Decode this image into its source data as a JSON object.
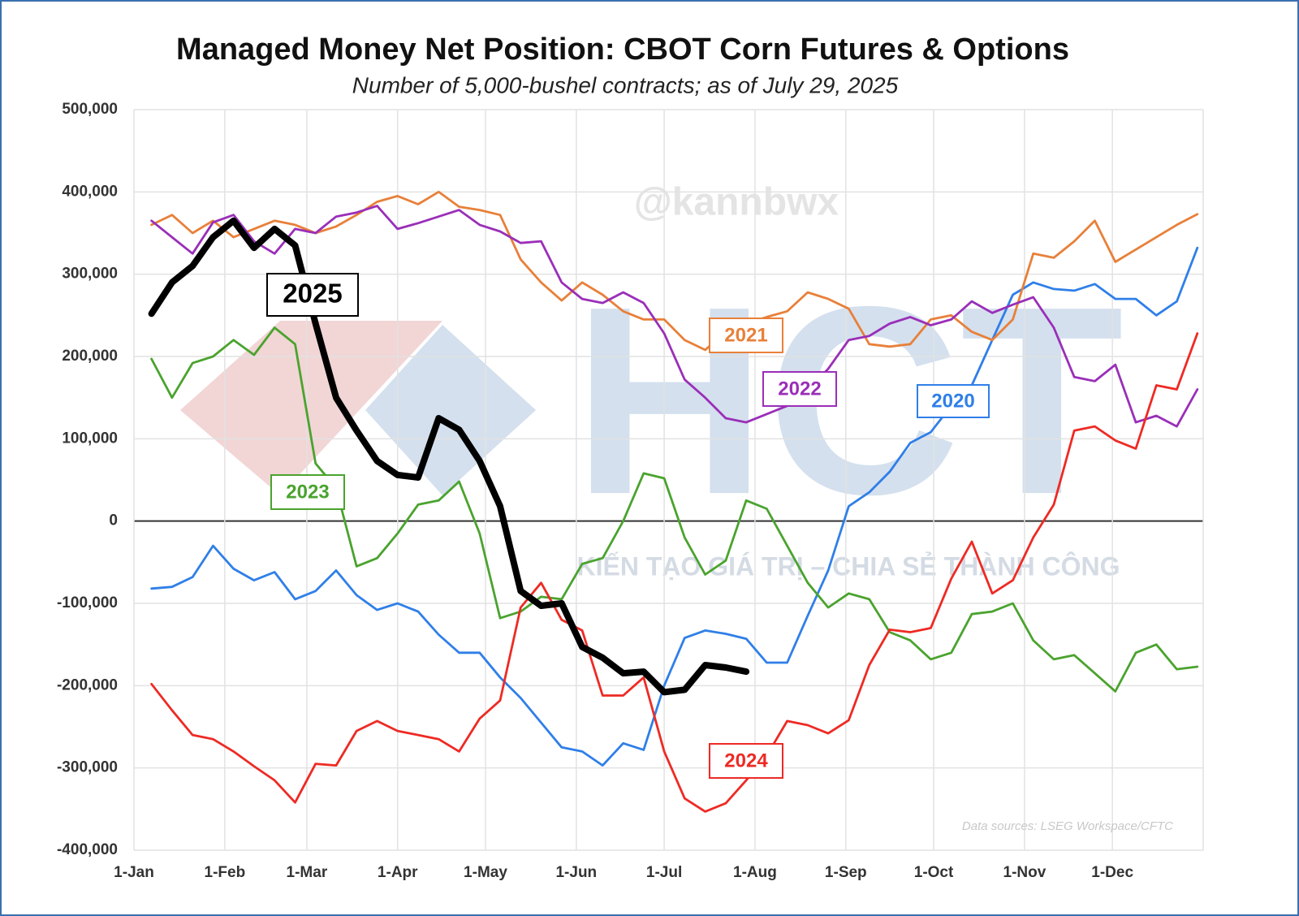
{
  "chart_data": {
    "type": "line",
    "title": "Managed Money Net Position: CBOT Corn Futures & Options",
    "subtitle": "Number of 5,000-bushel contracts; as of July 29, 2025",
    "source": "Data sources: LSEG Workspace/CFTC",
    "watermarks": [
      "@kannbwx",
      "HCT",
      "KIẾN TẠO GIÁ TRỊ – CHIA SẺ THÀNH CÔNG"
    ],
    "x": [
      6,
      13,
      20,
      27,
      34,
      41,
      48,
      55,
      62,
      69,
      76,
      83,
      90,
      97,
      104,
      111,
      118,
      125,
      132,
      139,
      146,
      153,
      160,
      167,
      174,
      181,
      188,
      195,
      202,
      209,
      216,
      223,
      230,
      237,
      244,
      251,
      258,
      265,
      272,
      279,
      286,
      293,
      300,
      307,
      314,
      321,
      328,
      335,
      342,
      349,
      356,
      363
    ],
    "xlim": [
      0,
      365
    ],
    "xticks": [
      {
        "value": 0,
        "label": "1-Jan"
      },
      {
        "value": 31,
        "label": "1-Feb"
      },
      {
        "value": 59,
        "label": "1-Mar"
      },
      {
        "value": 90,
        "label": "1-Apr"
      },
      {
        "value": 120,
        "label": "1-May"
      },
      {
        "value": 151,
        "label": "1-Jun"
      },
      {
        "value": 181,
        "label": "1-Jul"
      },
      {
        "value": 212,
        "label": "1-Aug"
      },
      {
        "value": 243,
        "label": "1-Sep"
      },
      {
        "value": 273,
        "label": "1-Oct"
      },
      {
        "value": 304,
        "label": "1-Nov"
      },
      {
        "value": 334,
        "label": "1-Dec"
      }
    ],
    "ylim": [
      -400000,
      500000
    ],
    "yticks": [
      {
        "value": -400000,
        "label": "-400,000"
      },
      {
        "value": -300000,
        "label": "-300,000"
      },
      {
        "value": -200000,
        "label": "-200,000"
      },
      {
        "value": -100000,
        "label": "-100,000"
      },
      0,
      {
        "value": 100000,
        "label": "100,000"
      },
      {
        "value": 200000,
        "label": "200,000"
      },
      {
        "value": 300000,
        "label": "300,000"
      },
      {
        "value": 400000,
        "label": "400,000"
      },
      {
        "value": 500000,
        "label": "500,000"
      }
    ],
    "grid": true,
    "series": [
      {
        "name": "2020",
        "color": "#2f7fe8",
        "values": [
          -82000,
          -80000,
          -68000,
          -30000,
          -58000,
          -72000,
          -62000,
          -95000,
          -85000,
          -60000,
          -90000,
          -108000,
          -100000,
          -110000,
          -138000,
          -160000,
          -160000,
          -190000,
          -215000,
          -245000,
          -275000,
          -280000,
          -297000,
          -270000,
          -278000,
          -200000,
          -142000,
          -133000,
          -137000,
          -143000,
          -172000,
          -172000,
          -115000,
          -60000,
          18000,
          35000,
          60000,
          95000,
          108000,
          140000,
          165000,
          220000,
          275000,
          290000,
          282000,
          280000,
          288000,
          270000,
          270000,
          250000,
          267000,
          332000
        ]
      },
      {
        "name": "2021",
        "color": "#e8803a",
        "values": [
          360000,
          372000,
          350000,
          365000,
          345000,
          355000,
          365000,
          360000,
          350000,
          358000,
          372000,
          388000,
          395000,
          385000,
          400000,
          382000,
          378000,
          372000,
          318000,
          290000,
          268000,
          290000,
          275000,
          255000,
          245000,
          245000,
          220000,
          208000,
          230000,
          240000,
          248000,
          255000,
          278000,
          270000,
          258000,
          215000,
          212000,
          215000,
          245000,
          250000,
          230000,
          220000,
          245000,
          325000,
          320000,
          340000,
          365000,
          315000,
          330000,
          345000,
          360000,
          373000
        ]
      },
      {
        "name": "2022",
        "color": "#9a2fb8",
        "values": [
          365000,
          345000,
          325000,
          363000,
          372000,
          340000,
          325000,
          355000,
          350000,
          370000,
          375000,
          383000,
          355000,
          362000,
          370000,
          378000,
          360000,
          352000,
          338000,
          340000,
          290000,
          270000,
          265000,
          278000,
          265000,
          228000,
          172000,
          150000,
          125000,
          120000,
          130000,
          140000,
          160000,
          185000,
          220000,
          225000,
          240000,
          248000,
          238000,
          245000,
          267000,
          253000,
          263000,
          272000,
          235000,
          175000,
          170000,
          190000,
          120000,
          128000,
          115000,
          160000
        ]
      },
      {
        "name": "2023",
        "color": "#4aa32e",
        "values": [
          197000,
          150000,
          192000,
          200000,
          220000,
          202000,
          235000,
          215000,
          70000,
          40000,
          -55000,
          -45000,
          -15000,
          20000,
          25000,
          48000,
          -15000,
          -118000,
          -110000,
          -92000,
          -95000,
          -52000,
          -45000,
          0,
          58000,
          52000,
          -20000,
          -65000,
          -48000,
          25000,
          15000,
          -30000,
          -75000,
          -105000,
          -88000,
          -95000,
          -135000,
          -145000,
          -168000,
          -160000,
          -113000,
          -110000,
          -100000,
          -145000,
          -168000,
          -163000,
          -185000,
          -207000,
          -160000,
          -150000,
          -180000,
          -177000
        ]
      },
      {
        "name": "2024",
        "color": "#ee2a24",
        "values": [
          -198000,
          -230000,
          -260000,
          -265000,
          -280000,
          -298000,
          -315000,
          -342000,
          -295000,
          -297000,
          -255000,
          -243000,
          -255000,
          -260000,
          -265000,
          -280000,
          -240000,
          -218000,
          -105000,
          -75000,
          -120000,
          -133000,
          -212000,
          -212000,
          -190000,
          -280000,
          -337000,
          -353000,
          -343000,
          -315000,
          -285000,
          -243000,
          -248000,
          -258000,
          -242000,
          -175000,
          -132000,
          -135000,
          -130000,
          -70000,
          -25000,
          -88000,
          -72000,
          -20000,
          20000,
          110000,
          115000,
          98000,
          88000,
          165000,
          160000,
          228000
        ]
      },
      {
        "name": "2025",
        "color": "#000000",
        "values": [
          252000,
          290000,
          310000,
          345000,
          365000,
          332000,
          355000,
          335000,
          240000,
          150000,
          110000,
          73000,
          56000,
          53000,
          125000,
          111000,
          73000,
          18000,
          -85000,
          -103000,
          -100000,
          -153000,
          -166000,
          -185000,
          -183000,
          -208000,
          -205000,
          -175000,
          -178000,
          -183000,
          null,
          null,
          null,
          null,
          null,
          null,
          null,
          null,
          null,
          null,
          null,
          null,
          null,
          null,
          null,
          null,
          null,
          null,
          null,
          null,
          null,
          null
        ]
      }
    ]
  }
}
